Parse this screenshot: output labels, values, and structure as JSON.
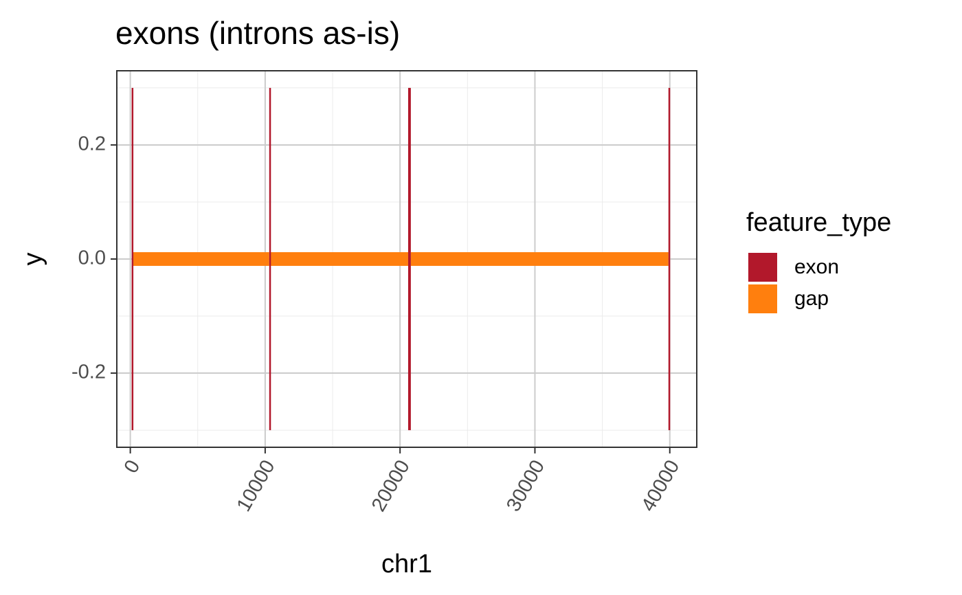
{
  "chart_data": {
    "type": "bar",
    "title": "exons (introns as-is)",
    "xlabel": "chr1",
    "ylabel": "y",
    "xlim": [
      -1000,
      42000
    ],
    "ylim": [
      -0.33,
      0.33
    ],
    "x_ticks": [
      0,
      10000,
      20000,
      30000,
      40000
    ],
    "x_tick_labels": [
      "0",
      "10000",
      "20000",
      "30000",
      "40000"
    ],
    "x_tick_rotation_deg": 60,
    "y_ticks": [
      0.2,
      0.0,
      -0.2
    ],
    "y_tick_labels": [
      "0.2",
      "0.0",
      "-0.2"
    ],
    "x_minor_ticks": [
      5000,
      15000,
      25000,
      35000
    ],
    "y_minor_ticks": [
      0.3,
      0.1,
      -0.1,
      -0.3
    ],
    "grid": true,
    "legend": {
      "title": "feature_type",
      "position": "right",
      "entries": [
        {
          "label": "exon",
          "color": "#B2182B"
        },
        {
          "label": "gap",
          "color": "#FF7F0E"
        }
      ]
    },
    "series": [
      {
        "name": "exon",
        "color": "#B2182B",
        "intervals": [
          {
            "start": 100,
            "end": 200,
            "ymin": -0.3,
            "ymax": 0.3
          },
          {
            "start": 10300,
            "end": 10400,
            "ymin": -0.3,
            "ymax": 0.3
          },
          {
            "start": 20600,
            "end": 20800,
            "ymin": -0.3,
            "ymax": 0.3
          },
          {
            "start": 39900,
            "end": 40000,
            "ymin": -0.3,
            "ymax": 0.3
          }
        ]
      },
      {
        "name": "gap",
        "color": "#FF7F0E",
        "intervals": [
          {
            "start": 200,
            "end": 10300,
            "ymin": -0.012,
            "ymax": 0.012
          },
          {
            "start": 10400,
            "end": 20600,
            "ymin": -0.012,
            "ymax": 0.012
          },
          {
            "start": 20800,
            "end": 39900,
            "ymin": -0.012,
            "ymax": 0.012
          }
        ]
      }
    ]
  }
}
